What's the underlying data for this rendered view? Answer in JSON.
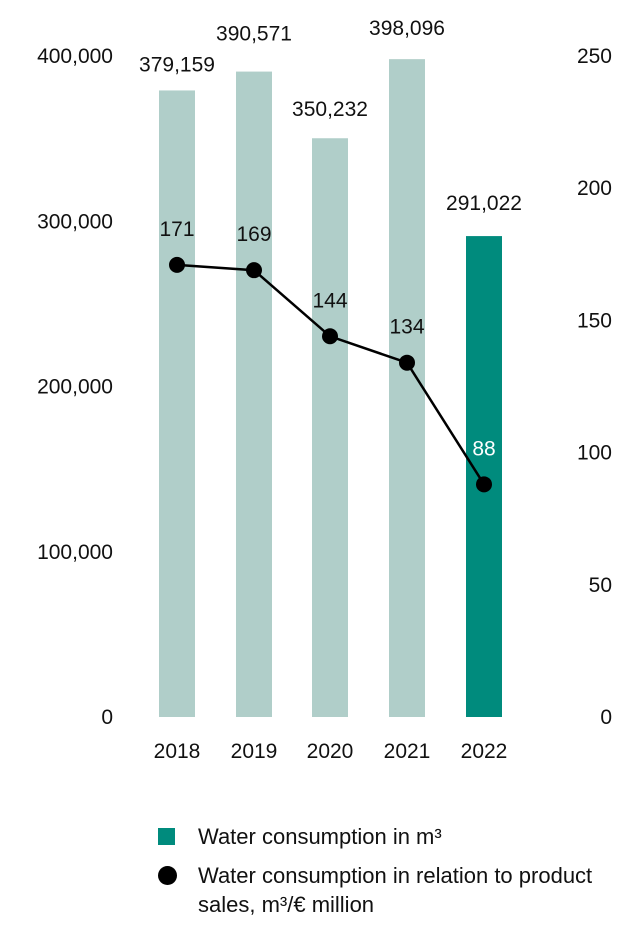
{
  "chart_data": {
    "type": "bar+line",
    "categories": [
      "2018",
      "2019",
      "2020",
      "2021",
      "2022"
    ],
    "series": [
      {
        "name": "Water consumption in m³",
        "type": "bar",
        "axis": "left",
        "values": [
          379159,
          390571,
          350232,
          398096,
          291022
        ],
        "labels": [
          "379,159",
          "390,571",
          "350,232",
          "398,096",
          "291,022"
        ]
      },
      {
        "name": "Water consumption in relation to product sales, m³/€ million",
        "type": "line",
        "axis": "right",
        "values": [
          171,
          169,
          144,
          134,
          88
        ],
        "labels": [
          "171",
          "169",
          "144",
          "134",
          "88"
        ]
      }
    ],
    "y_left": {
      "min": 0,
      "max": 400000,
      "ticks": [
        "0",
        "100,000",
        "200,000",
        "300,000",
        "400,000"
      ]
    },
    "y_right": {
      "min": 0,
      "max": 250,
      "ticks": [
        "0",
        "50",
        "100",
        "150",
        "200",
        "250"
      ]
    },
    "grid": false,
    "legend_position": "bottom",
    "colors": {
      "bar_past": "#b0cec9",
      "bar_current": "#008b7d",
      "line": "#000000"
    }
  },
  "legend": {
    "bar_label": "Water consumption in m³",
    "line_label": "Water consumption in relation to product sales, m³/€ million"
  }
}
